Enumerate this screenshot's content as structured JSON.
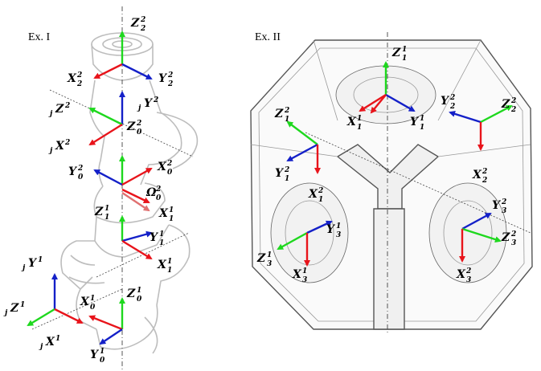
{
  "panels": [
    {
      "label": "Ex. I",
      "frames": [
        {
          "base": "Z",
          "sub": "2",
          "sup": "2"
        },
        {
          "base": "X",
          "sub": "2",
          "sup": "2"
        },
        {
          "base": "Y",
          "sub": "2",
          "sup": "2"
        },
        {
          "prefix": "j",
          "base": "Z",
          "sup": "2"
        },
        {
          "prefix": "j",
          "base": "Y",
          "sup": "2"
        },
        {
          "prefix": "j",
          "base": "X",
          "sup": "2"
        },
        {
          "base": "Z",
          "sub": "0",
          "sup": "2"
        },
        {
          "base": "X",
          "sub": "0",
          "sup": "2"
        },
        {
          "base": "Y",
          "sub": "0",
          "sup": "2"
        },
        {
          "base": "Ω",
          "sub": "0",
          "sup": "2"
        },
        {
          "base": "Z",
          "sub": "1",
          "sup": "1"
        },
        {
          "base": "X",
          "sub": "1",
          "sup": "1"
        },
        {
          "base": "Y",
          "sub": "1",
          "sup": "1"
        },
        {
          "base": "X",
          "sub": "1",
          "sup": "1"
        },
        {
          "prefix": "j",
          "base": "Y",
          "sup": "1"
        },
        {
          "prefix": "j",
          "base": "Z",
          "sup": "1"
        },
        {
          "base": "X",
          "sub": "0",
          "sup": "1"
        },
        {
          "base": "Z",
          "sub": "0",
          "sup": "1"
        },
        {
          "prefix": "j",
          "base": "X",
          "sup": "1"
        },
        {
          "base": "Y",
          "sub": "0",
          "sup": "1"
        }
      ]
    },
    {
      "label": "Ex. II",
      "frames": [
        {
          "base": "Z",
          "sub": "1",
          "sup": "1"
        },
        {
          "base": "X",
          "sub": "1",
          "sup": "1"
        },
        {
          "base": "Y",
          "sub": "1",
          "sup": "1"
        },
        {
          "base": "Y",
          "sub": "2",
          "sup": "2"
        },
        {
          "base": "Z",
          "sub": "2",
          "sup": "2"
        },
        {
          "base": "Z",
          "sub": "1",
          "sup": "2"
        },
        {
          "base": "Y",
          "sub": "1",
          "sup": "2"
        },
        {
          "base": "X",
          "sub": "1",
          "sup": "2"
        },
        {
          "base": "X",
          "sub": "2",
          "sup": "2"
        },
        {
          "base": "Y",
          "sub": "3",
          "sup": "2"
        },
        {
          "base": "Y",
          "sub": "3",
          "sup": "1"
        },
        {
          "base": "Z",
          "sub": "3",
          "sup": "2"
        },
        {
          "base": "Z",
          "sub": "3",
          "sup": "1"
        },
        {
          "base": "X",
          "sub": "3",
          "sup": "1"
        },
        {
          "base": "X",
          "sub": "3",
          "sup": "2"
        }
      ]
    }
  ]
}
